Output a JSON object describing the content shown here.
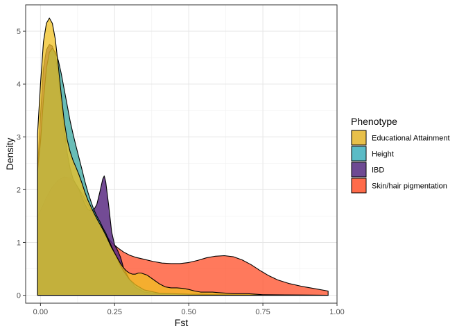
{
  "chart_data": {
    "type": "area",
    "subtype": "density",
    "title": "",
    "xlabel": "Fst",
    "ylabel": "Density",
    "xlim": [
      -0.05,
      1.0
    ],
    "ylim": [
      -0.15,
      5.5
    ],
    "x_ticks": [
      0.0,
      0.25,
      0.5,
      0.75,
      1.0
    ],
    "x_tick_labels": [
      "0.00",
      "0.25",
      "0.50",
      "0.75",
      "1.00"
    ],
    "y_ticks": [
      0,
      1,
      2,
      3,
      4,
      5
    ],
    "y_tick_labels": [
      "0",
      "1",
      "2",
      "3",
      "4",
      "5"
    ],
    "grid": true,
    "legend": {
      "title": "Phenotype",
      "position": "right"
    },
    "series": [
      {
        "name": "Skin/hair pigmentation",
        "color": "#FF5733",
        "fill_opacity": 0.8,
        "points": [
          [
            -0.01,
            1.48
          ],
          [
            0.0,
            1.6
          ],
          [
            0.02,
            1.85
          ],
          [
            0.04,
            2.05
          ],
          [
            0.06,
            2.18
          ],
          [
            0.08,
            2.24
          ],
          [
            0.1,
            2.22
          ],
          [
            0.12,
            2.1
          ],
          [
            0.14,
            1.92
          ],
          [
            0.16,
            1.72
          ],
          [
            0.18,
            1.52
          ],
          [
            0.2,
            1.32
          ],
          [
            0.22,
            1.15
          ],
          [
            0.24,
            1.0
          ],
          [
            0.26,
            0.9
          ],
          [
            0.28,
            0.82
          ],
          [
            0.3,
            0.76
          ],
          [
            0.32,
            0.72
          ],
          [
            0.35,
            0.68
          ],
          [
            0.38,
            0.64
          ],
          [
            0.41,
            0.61
          ],
          [
            0.44,
            0.6
          ],
          [
            0.47,
            0.6
          ],
          [
            0.5,
            0.62
          ],
          [
            0.53,
            0.66
          ],
          [
            0.56,
            0.71
          ],
          [
            0.59,
            0.74
          ],
          [
            0.62,
            0.75
          ],
          [
            0.65,
            0.73
          ],
          [
            0.68,
            0.67
          ],
          [
            0.71,
            0.58
          ],
          [
            0.74,
            0.47
          ],
          [
            0.77,
            0.37
          ],
          [
            0.8,
            0.29
          ],
          [
            0.84,
            0.22
          ],
          [
            0.88,
            0.17
          ],
          [
            0.92,
            0.13
          ],
          [
            0.97,
            0.08
          ]
        ]
      },
      {
        "name": "IBD",
        "color": "#5B2C83",
        "fill_opacity": 0.85,
        "points": [
          [
            -0.01,
            2.35
          ],
          [
            0.0,
            3.4
          ],
          [
            0.01,
            4.3
          ],
          [
            0.02,
            4.65
          ],
          [
            0.03,
            4.75
          ],
          [
            0.04,
            4.72
          ],
          [
            0.05,
            4.55
          ],
          [
            0.06,
            4.15
          ],
          [
            0.07,
            3.65
          ],
          [
            0.08,
            3.15
          ],
          [
            0.09,
            2.7
          ],
          [
            0.1,
            2.4
          ],
          [
            0.11,
            2.2
          ],
          [
            0.12,
            2.1
          ],
          [
            0.13,
            2.0
          ],
          [
            0.14,
            1.85
          ],
          [
            0.15,
            1.72
          ],
          [
            0.16,
            1.62
          ],
          [
            0.17,
            1.6
          ],
          [
            0.18,
            1.62
          ],
          [
            0.19,
            1.72
          ],
          [
            0.2,
            1.95
          ],
          [
            0.21,
            2.2
          ],
          [
            0.215,
            2.26
          ],
          [
            0.22,
            2.15
          ],
          [
            0.23,
            1.7
          ],
          [
            0.24,
            1.2
          ],
          [
            0.25,
            0.95
          ],
          [
            0.26,
            0.85
          ],
          [
            0.27,
            0.72
          ],
          [
            0.28,
            0.52
          ],
          [
            0.3,
            0.3
          ],
          [
            0.32,
            0.15
          ],
          [
            0.35,
            0.06
          ],
          [
            0.4,
            0.03
          ],
          [
            0.5,
            0.02
          ],
          [
            0.6,
            0.01
          ],
          [
            0.7,
            0.01
          ],
          [
            0.8,
            0.0
          ],
          [
            0.97,
            0.0
          ]
        ]
      },
      {
        "name": "Height",
        "color": "#2AA198",
        "fill_opacity": 0.7,
        "points": [
          [
            -0.01,
            2.35
          ],
          [
            0.0,
            2.9
          ],
          [
            0.01,
            3.7
          ],
          [
            0.02,
            4.3
          ],
          [
            0.03,
            4.6
          ],
          [
            0.04,
            4.68
          ],
          [
            0.05,
            4.6
          ],
          [
            0.06,
            4.45
          ],
          [
            0.07,
            4.2
          ],
          [
            0.08,
            3.9
          ],
          [
            0.09,
            3.6
          ],
          [
            0.1,
            3.3
          ],
          [
            0.11,
            3.05
          ],
          [
            0.12,
            2.82
          ],
          [
            0.13,
            2.6
          ],
          [
            0.14,
            2.38
          ],
          [
            0.15,
            2.15
          ],
          [
            0.16,
            1.95
          ],
          [
            0.17,
            1.78
          ],
          [
            0.18,
            1.62
          ],
          [
            0.19,
            1.5
          ],
          [
            0.2,
            1.4
          ],
          [
            0.21,
            1.28
          ],
          [
            0.22,
            1.18
          ],
          [
            0.23,
            1.05
          ],
          [
            0.24,
            0.92
          ],
          [
            0.25,
            0.8
          ],
          [
            0.26,
            0.68
          ],
          [
            0.27,
            0.56
          ],
          [
            0.28,
            0.46
          ],
          [
            0.29,
            0.38
          ],
          [
            0.3,
            0.3
          ],
          [
            0.32,
            0.2
          ],
          [
            0.35,
            0.1
          ],
          [
            0.4,
            0.04
          ],
          [
            0.5,
            0.02
          ],
          [
            0.6,
            0.01
          ],
          [
            0.97,
            0.0
          ]
        ]
      },
      {
        "name": "Educational Attainment",
        "color": "#F0C020",
        "fill_opacity": 0.75,
        "points": [
          [
            -0.01,
            3.05
          ],
          [
            0.0,
            4.0
          ],
          [
            0.01,
            4.8
          ],
          [
            0.02,
            5.15
          ],
          [
            0.03,
            5.25
          ],
          [
            0.04,
            5.15
          ],
          [
            0.05,
            4.85
          ],
          [
            0.06,
            4.35
          ],
          [
            0.07,
            3.8
          ],
          [
            0.08,
            3.3
          ],
          [
            0.09,
            2.95
          ],
          [
            0.1,
            2.72
          ],
          [
            0.11,
            2.55
          ],
          [
            0.12,
            2.42
          ],
          [
            0.13,
            2.28
          ],
          [
            0.14,
            2.12
          ],
          [
            0.15,
            1.95
          ],
          [
            0.16,
            1.8
          ],
          [
            0.17,
            1.68
          ],
          [
            0.18,
            1.56
          ],
          [
            0.19,
            1.45
          ],
          [
            0.2,
            1.35
          ],
          [
            0.21,
            1.25
          ],
          [
            0.22,
            1.14
          ],
          [
            0.23,
            1.02
          ],
          [
            0.24,
            0.9
          ],
          [
            0.25,
            0.8
          ],
          [
            0.26,
            0.7
          ],
          [
            0.27,
            0.6
          ],
          [
            0.28,
            0.52
          ],
          [
            0.29,
            0.46
          ],
          [
            0.3,
            0.42
          ],
          [
            0.31,
            0.4
          ],
          [
            0.32,
            0.4
          ],
          [
            0.33,
            0.42
          ],
          [
            0.34,
            0.42
          ],
          [
            0.36,
            0.38
          ],
          [
            0.38,
            0.3
          ],
          [
            0.4,
            0.22
          ],
          [
            0.42,
            0.16
          ],
          [
            0.44,
            0.14
          ],
          [
            0.46,
            0.14
          ],
          [
            0.48,
            0.13
          ],
          [
            0.5,
            0.11
          ],
          [
            0.52,
            0.08
          ],
          [
            0.54,
            0.06
          ],
          [
            0.56,
            0.06
          ],
          [
            0.58,
            0.06
          ],
          [
            0.6,
            0.05
          ],
          [
            0.65,
            0.03
          ],
          [
            0.7,
            0.03
          ],
          [
            0.75,
            0.01
          ],
          [
            0.97,
            0.0
          ]
        ]
      }
    ],
    "legend_order": [
      "Educational Attainment",
      "Height",
      "IBD",
      "Skin/hair pigmentation"
    ],
    "legend_colors": {
      "Educational Attainment": "#E8C04A",
      "Height": "#5BBBC6",
      "IBD": "#6E4A93",
      "Skin/hair pigmentation": "#FF6B4A"
    }
  }
}
